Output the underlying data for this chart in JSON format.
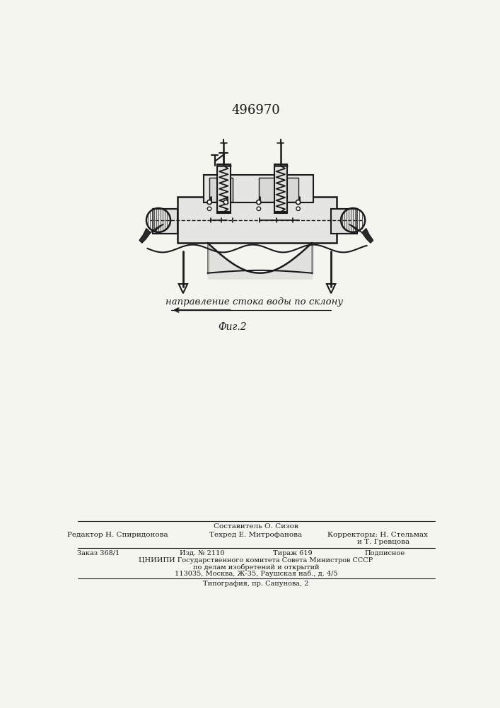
{
  "patent_number": "496970",
  "bg_color": "#f5f5f0",
  "line_color": "#1a1a1a",
  "fig_label": "Фиг.2",
  "direction_text": "направление стока воды по склону",
  "footer_composer": "Составитель О. Сизов",
  "footer_editor": "Редактор Н. Спиридонова",
  "footer_techred": "Техред Е. Митрофанова",
  "footer_correctors": "Корректоры: Н. Стельмах",
  "footer_correctors2": "и Т. Гревцова",
  "footer_order": "Заказ 368/1",
  "footer_izd": "Изд. № 2110",
  "footer_tirazh": "Тираж 619",
  "footer_podpisnoe": "Подписное",
  "footer_tsniipi": "ЦНИИПИ Государственного комитета Совета Министров СССР",
  "footer_po_delam": "по делам изобретений и открытий",
  "footer_address": "113035, Москва, Ж-35, Раушская наб., д. 4/5",
  "footer_tipografiya": "Типография, пр. Сапунова, 2"
}
